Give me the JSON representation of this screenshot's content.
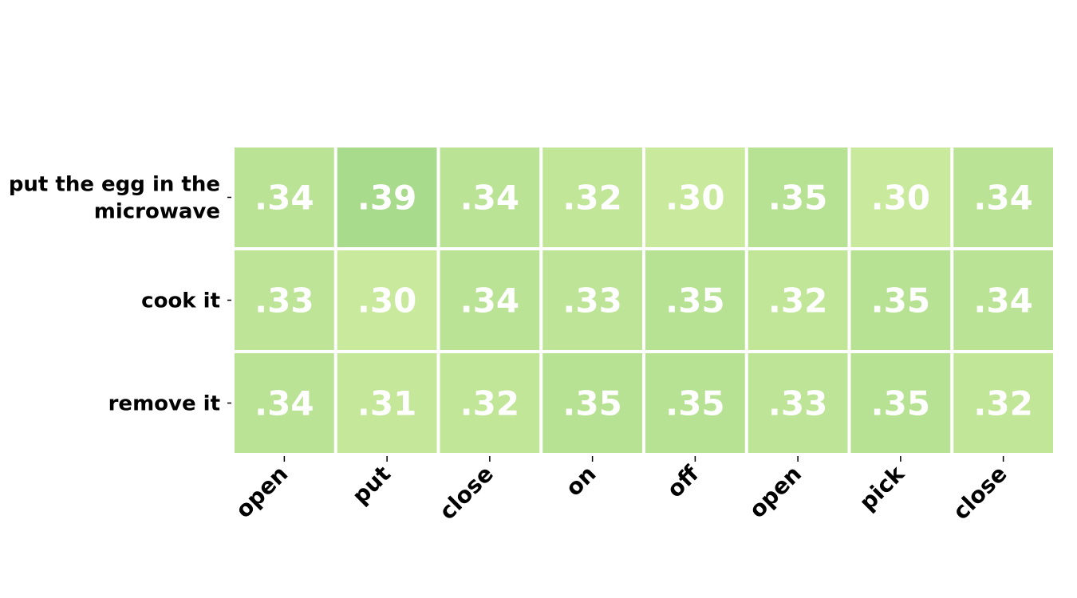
{
  "chart_data": {
    "type": "heatmap",
    "rows": [
      [
        "put the egg in the",
        "microwave"
      ],
      [
        "cook it"
      ],
      [
        "remove it"
      ]
    ],
    "columns": [
      "open",
      "put",
      "close",
      "on",
      "off",
      "open",
      "pick",
      "close"
    ],
    "values": [
      [
        0.34,
        0.39,
        0.34,
        0.32,
        0.3,
        0.35,
        0.3,
        0.34
      ],
      [
        0.33,
        0.3,
        0.34,
        0.33,
        0.35,
        0.32,
        0.35,
        0.34
      ],
      [
        0.34,
        0.31,
        0.32,
        0.35,
        0.35,
        0.33,
        0.35,
        0.32
      ]
    ],
    "value_labels": [
      [
        ".34",
        ".39",
        ".34",
        ".32",
        ".30",
        ".35",
        ".30",
        ".34"
      ],
      [
        ".33",
        ".30",
        ".34",
        ".33",
        ".35",
        ".32",
        ".35",
        ".34"
      ],
      [
        ".34",
        ".31",
        ".32",
        ".35",
        ".35",
        ".33",
        ".35",
        ".32"
      ]
    ],
    "color_scale": {
      "low_value": 0.3,
      "high_value": 0.39,
      "low_color": "#c9e99c",
      "high_color": "#a9db8c"
    },
    "cell_text_color": "#ffffff",
    "grid_line_color": "#ffffff"
  }
}
